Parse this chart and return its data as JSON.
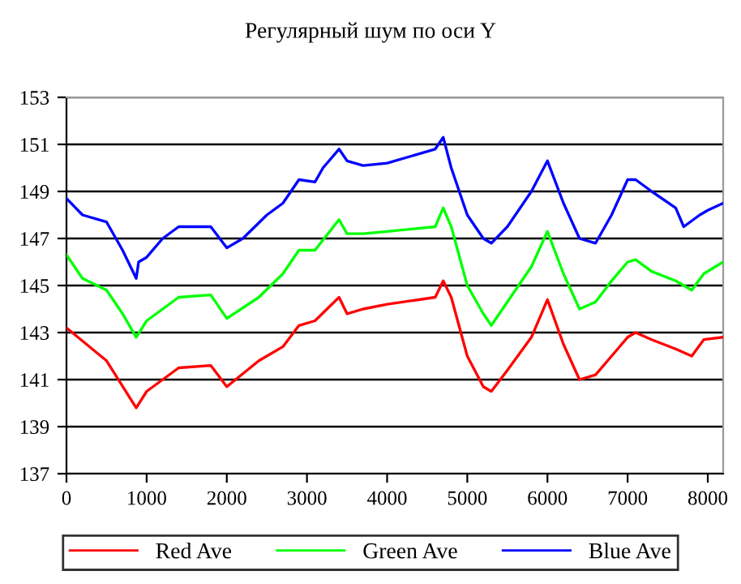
{
  "chart_data": {
    "type": "line",
    "title": "Регулярный шум по оси Y",
    "xlim": [
      0,
      8192
    ],
    "xticks": [
      0,
      1000,
      2000,
      3000,
      4000,
      5000,
      6000,
      7000,
      8000
    ],
    "ylim": [
      137,
      153
    ],
    "yticks": [
      137,
      139,
      141,
      143,
      145,
      147,
      149,
      151,
      153
    ],
    "grid": "y",
    "legend": "bottom",
    "marker": "none",
    "line_style": "solid",
    "series": [
      {
        "name": "Red Ave",
        "color": "#ff0000",
        "x": [
          0,
          500,
          870,
          1000,
          1400,
          1800,
          2000,
          2400,
          2700,
          2900,
          3100,
          3400,
          3500,
          3700,
          4000,
          4600,
          4700,
          4800,
          5000,
          5200,
          5300,
          5500,
          5800,
          6000,
          6200,
          6400,
          6600,
          6800,
          7000,
          7100,
          7300,
          7600,
          7800,
          7950,
          8192
        ],
        "values": [
          143.2,
          141.8,
          139.8,
          140.5,
          141.5,
          141.6,
          140.7,
          141.8,
          142.4,
          143.3,
          143.5,
          144.5,
          143.8,
          144,
          144.2,
          144.5,
          145.2,
          144.5,
          142,
          140.7,
          140.5,
          141.4,
          142.8,
          144.4,
          142.5,
          141,
          141.2,
          142,
          142.8,
          143,
          142.7,
          142.3,
          142,
          142.7,
          142.8
        ]
      },
      {
        "name": "Green Ave",
        "color": "#00ff00",
        "x": [
          0,
          200,
          500,
          700,
          870,
          1000,
          1400,
          1800,
          2000,
          2400,
          2700,
          2900,
          3100,
          3400,
          3500,
          3700,
          4000,
          4600,
          4700,
          4800,
          5000,
          5200,
          5300,
          5500,
          5800,
          6000,
          6200,
          6400,
          6600,
          6800,
          7000,
          7100,
          7300,
          7600,
          7800,
          7950,
          8192
        ],
        "values": [
          146.3,
          145.3,
          144.8,
          143.8,
          142.8,
          143.5,
          144.5,
          144.6,
          143.6,
          144.5,
          145.5,
          146.5,
          146.5,
          147.8,
          147.2,
          147.2,
          147.3,
          147.5,
          148.3,
          147.5,
          145,
          143.8,
          143.3,
          144.3,
          145.8,
          147.3,
          145.5,
          144,
          144.3,
          145.2,
          146,
          146.1,
          145.6,
          145.2,
          144.8,
          145.5,
          146
        ]
      },
      {
        "name": "Blue Ave",
        "color": "#0000ff",
        "x": [
          0,
          200,
          500,
          700,
          870,
          900,
          1000,
          1200,
          1400,
          1800,
          2000,
          2200,
          2500,
          2700,
          2900,
          3100,
          3200,
          3400,
          3500,
          3700,
          4000,
          4300,
          4600,
          4700,
          4800,
          5000,
          5200,
          5300,
          5500,
          5800,
          6000,
          6200,
          6400,
          6600,
          6800,
          7000,
          7100,
          7300,
          7600,
          7700,
          7900,
          8000,
          8192
        ],
        "values": [
          148.7,
          148,
          147.7,
          146.5,
          145.3,
          146,
          146.2,
          147,
          147.5,
          147.5,
          146.6,
          147,
          148,
          148.5,
          149.5,
          149.4,
          150,
          150.8,
          150.3,
          150.1,
          150.2,
          150.5,
          150.8,
          151.3,
          150,
          148,
          147,
          146.8,
          147.5,
          149,
          150.3,
          148.5,
          147,
          146.8,
          148,
          149.5,
          149.5,
          149,
          148.3,
          147.5,
          148,
          148.2,
          148.5
        ]
      }
    ]
  }
}
